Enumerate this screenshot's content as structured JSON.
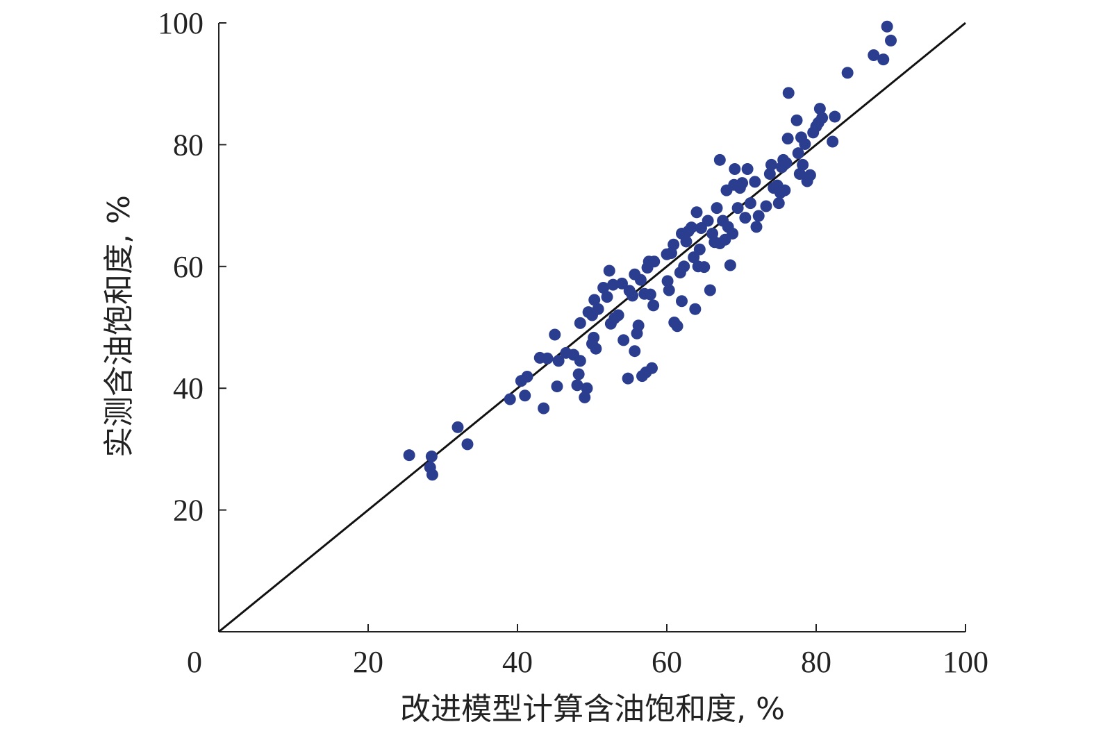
{
  "chart_data": {
    "type": "scatter",
    "title": "",
    "xlabel": "改进模型计算含油饱和度, %",
    "ylabel": "实测含油饱和度, %",
    "xlim": [
      0,
      100
    ],
    "ylim": [
      0,
      100
    ],
    "x_ticks": [
      "0",
      "20",
      "40",
      "60",
      "80",
      "100"
    ],
    "y_ticks": [
      "20",
      "40",
      "60",
      "80",
      "100"
    ],
    "grid": false,
    "legend": "none",
    "reference_line": {
      "kind": "y=x",
      "color": "#111111"
    },
    "series": [
      {
        "color": "#2a3d8f",
        "points": [
          [
            25.5,
            29
          ],
          [
            28.5,
            28.8
          ],
          [
            28.3,
            27
          ],
          [
            28.6,
            25.8
          ],
          [
            32,
            33.6
          ],
          [
            33.3,
            30.8
          ],
          [
            39,
            38.2
          ],
          [
            40.5,
            41.2
          ],
          [
            41,
            38.8
          ],
          [
            41.3,
            41.9
          ],
          [
            43,
            45
          ],
          [
            43.5,
            36.7
          ],
          [
            44,
            44.9
          ],
          [
            45,
            48.8
          ],
          [
            45.3,
            40.3
          ],
          [
            45.5,
            44.5
          ],
          [
            46.5,
            45.8
          ],
          [
            47.5,
            45.5
          ],
          [
            48,
            40.5
          ],
          [
            48.2,
            42.3
          ],
          [
            48.4,
            44.5
          ],
          [
            48.4,
            50.7
          ],
          [
            49,
            38.5
          ],
          [
            49.3,
            40
          ],
          [
            49.5,
            52.5
          ],
          [
            50,
            47.3
          ],
          [
            50,
            52
          ],
          [
            50.2,
            48.3
          ],
          [
            50.3,
            54.5
          ],
          [
            50.5,
            46.5
          ],
          [
            50.8,
            53
          ],
          [
            51.5,
            56.5
          ],
          [
            52,
            55
          ],
          [
            52.3,
            59.3
          ],
          [
            52.5,
            50.6
          ],
          [
            52.8,
            57
          ],
          [
            53,
            51.5
          ],
          [
            53.5,
            52
          ],
          [
            54,
            57.2
          ],
          [
            54.2,
            47.9
          ],
          [
            54.8,
            41.6
          ],
          [
            55,
            56
          ],
          [
            55.4,
            55.2
          ],
          [
            55.7,
            58.7
          ],
          [
            55.7,
            46.1
          ],
          [
            56,
            49
          ],
          [
            56.2,
            50.3
          ],
          [
            56.5,
            57.8
          ],
          [
            56.7,
            42
          ],
          [
            57,
            55.5
          ],
          [
            57.2,
            42.6
          ],
          [
            57.4,
            59.8
          ],
          [
            57.6,
            60.8
          ],
          [
            57.8,
            55.4
          ],
          [
            58,
            43.3
          ],
          [
            58.2,
            53.6
          ],
          [
            58.3,
            60.8
          ],
          [
            60,
            62
          ],
          [
            60.1,
            57.6
          ],
          [
            60.3,
            56.1
          ],
          [
            60.6,
            62.2
          ],
          [
            60.9,
            63.6
          ],
          [
            61,
            50.8
          ],
          [
            61.4,
            50.2
          ],
          [
            61.8,
            59
          ],
          [
            62,
            65.4
          ],
          [
            62,
            54.3
          ],
          [
            62.3,
            60
          ],
          [
            62.6,
            64.1
          ],
          [
            62.9,
            65.8
          ],
          [
            63.3,
            66.4
          ],
          [
            63.6,
            61.5
          ],
          [
            63.8,
            53
          ],
          [
            64,
            68.9
          ],
          [
            64.2,
            60
          ],
          [
            64.4,
            62.8
          ],
          [
            64.6,
            66.3
          ],
          [
            65,
            59.9
          ],
          [
            65.5,
            67.5
          ],
          [
            65.8,
            56.1
          ],
          [
            66.1,
            65.4
          ],
          [
            66.4,
            64
          ],
          [
            66.7,
            69.6
          ],
          [
            67.1,
            77.5
          ],
          [
            67.1,
            63.8
          ],
          [
            67.5,
            67.5
          ],
          [
            67.8,
            64.4
          ],
          [
            68,
            72.5
          ],
          [
            68.2,
            66.5
          ],
          [
            68.5,
            60.2
          ],
          [
            68.8,
            65.4
          ],
          [
            69,
            73.4
          ],
          [
            69.1,
            76
          ],
          [
            69.5,
            69.6
          ],
          [
            69.8,
            72.9
          ],
          [
            70.1,
            73.7
          ],
          [
            70.5,
            68
          ],
          [
            70.8,
            76
          ],
          [
            71.2,
            70.4
          ],
          [
            71.8,
            73.9
          ],
          [
            72,
            66.5
          ],
          [
            72.3,
            68.3
          ],
          [
            73.3,
            69.9
          ],
          [
            73.8,
            75.2
          ],
          [
            74,
            76.7
          ],
          [
            74.3,
            72.9
          ],
          [
            74.8,
            73.3
          ],
          [
            75,
            70.4
          ],
          [
            75.2,
            72.1
          ],
          [
            75.4,
            76.3
          ],
          [
            75.6,
            77.5
          ],
          [
            75.8,
            72.5
          ],
          [
            76,
            77
          ],
          [
            76.2,
            81
          ],
          [
            76.3,
            88.5
          ],
          [
            77.4,
            84
          ],
          [
            77.6,
            78.6
          ],
          [
            77.8,
            75.2
          ],
          [
            78,
            81.2
          ],
          [
            78.2,
            76.7
          ],
          [
            78.5,
            80.1
          ],
          [
            78.8,
            74
          ],
          [
            79.2,
            75
          ],
          [
            79.6,
            82
          ],
          [
            80,
            83
          ],
          [
            80.3,
            83.6
          ],
          [
            80.5,
            85.9
          ],
          [
            80.8,
            84.4
          ],
          [
            82.2,
            80.5
          ],
          [
            82.5,
            84.6
          ],
          [
            84.2,
            91.8
          ],
          [
            87.7,
            94.7
          ],
          [
            89,
            94
          ],
          [
            89.5,
            99.4
          ],
          [
            90,
            97.1
          ]
        ]
      }
    ]
  }
}
